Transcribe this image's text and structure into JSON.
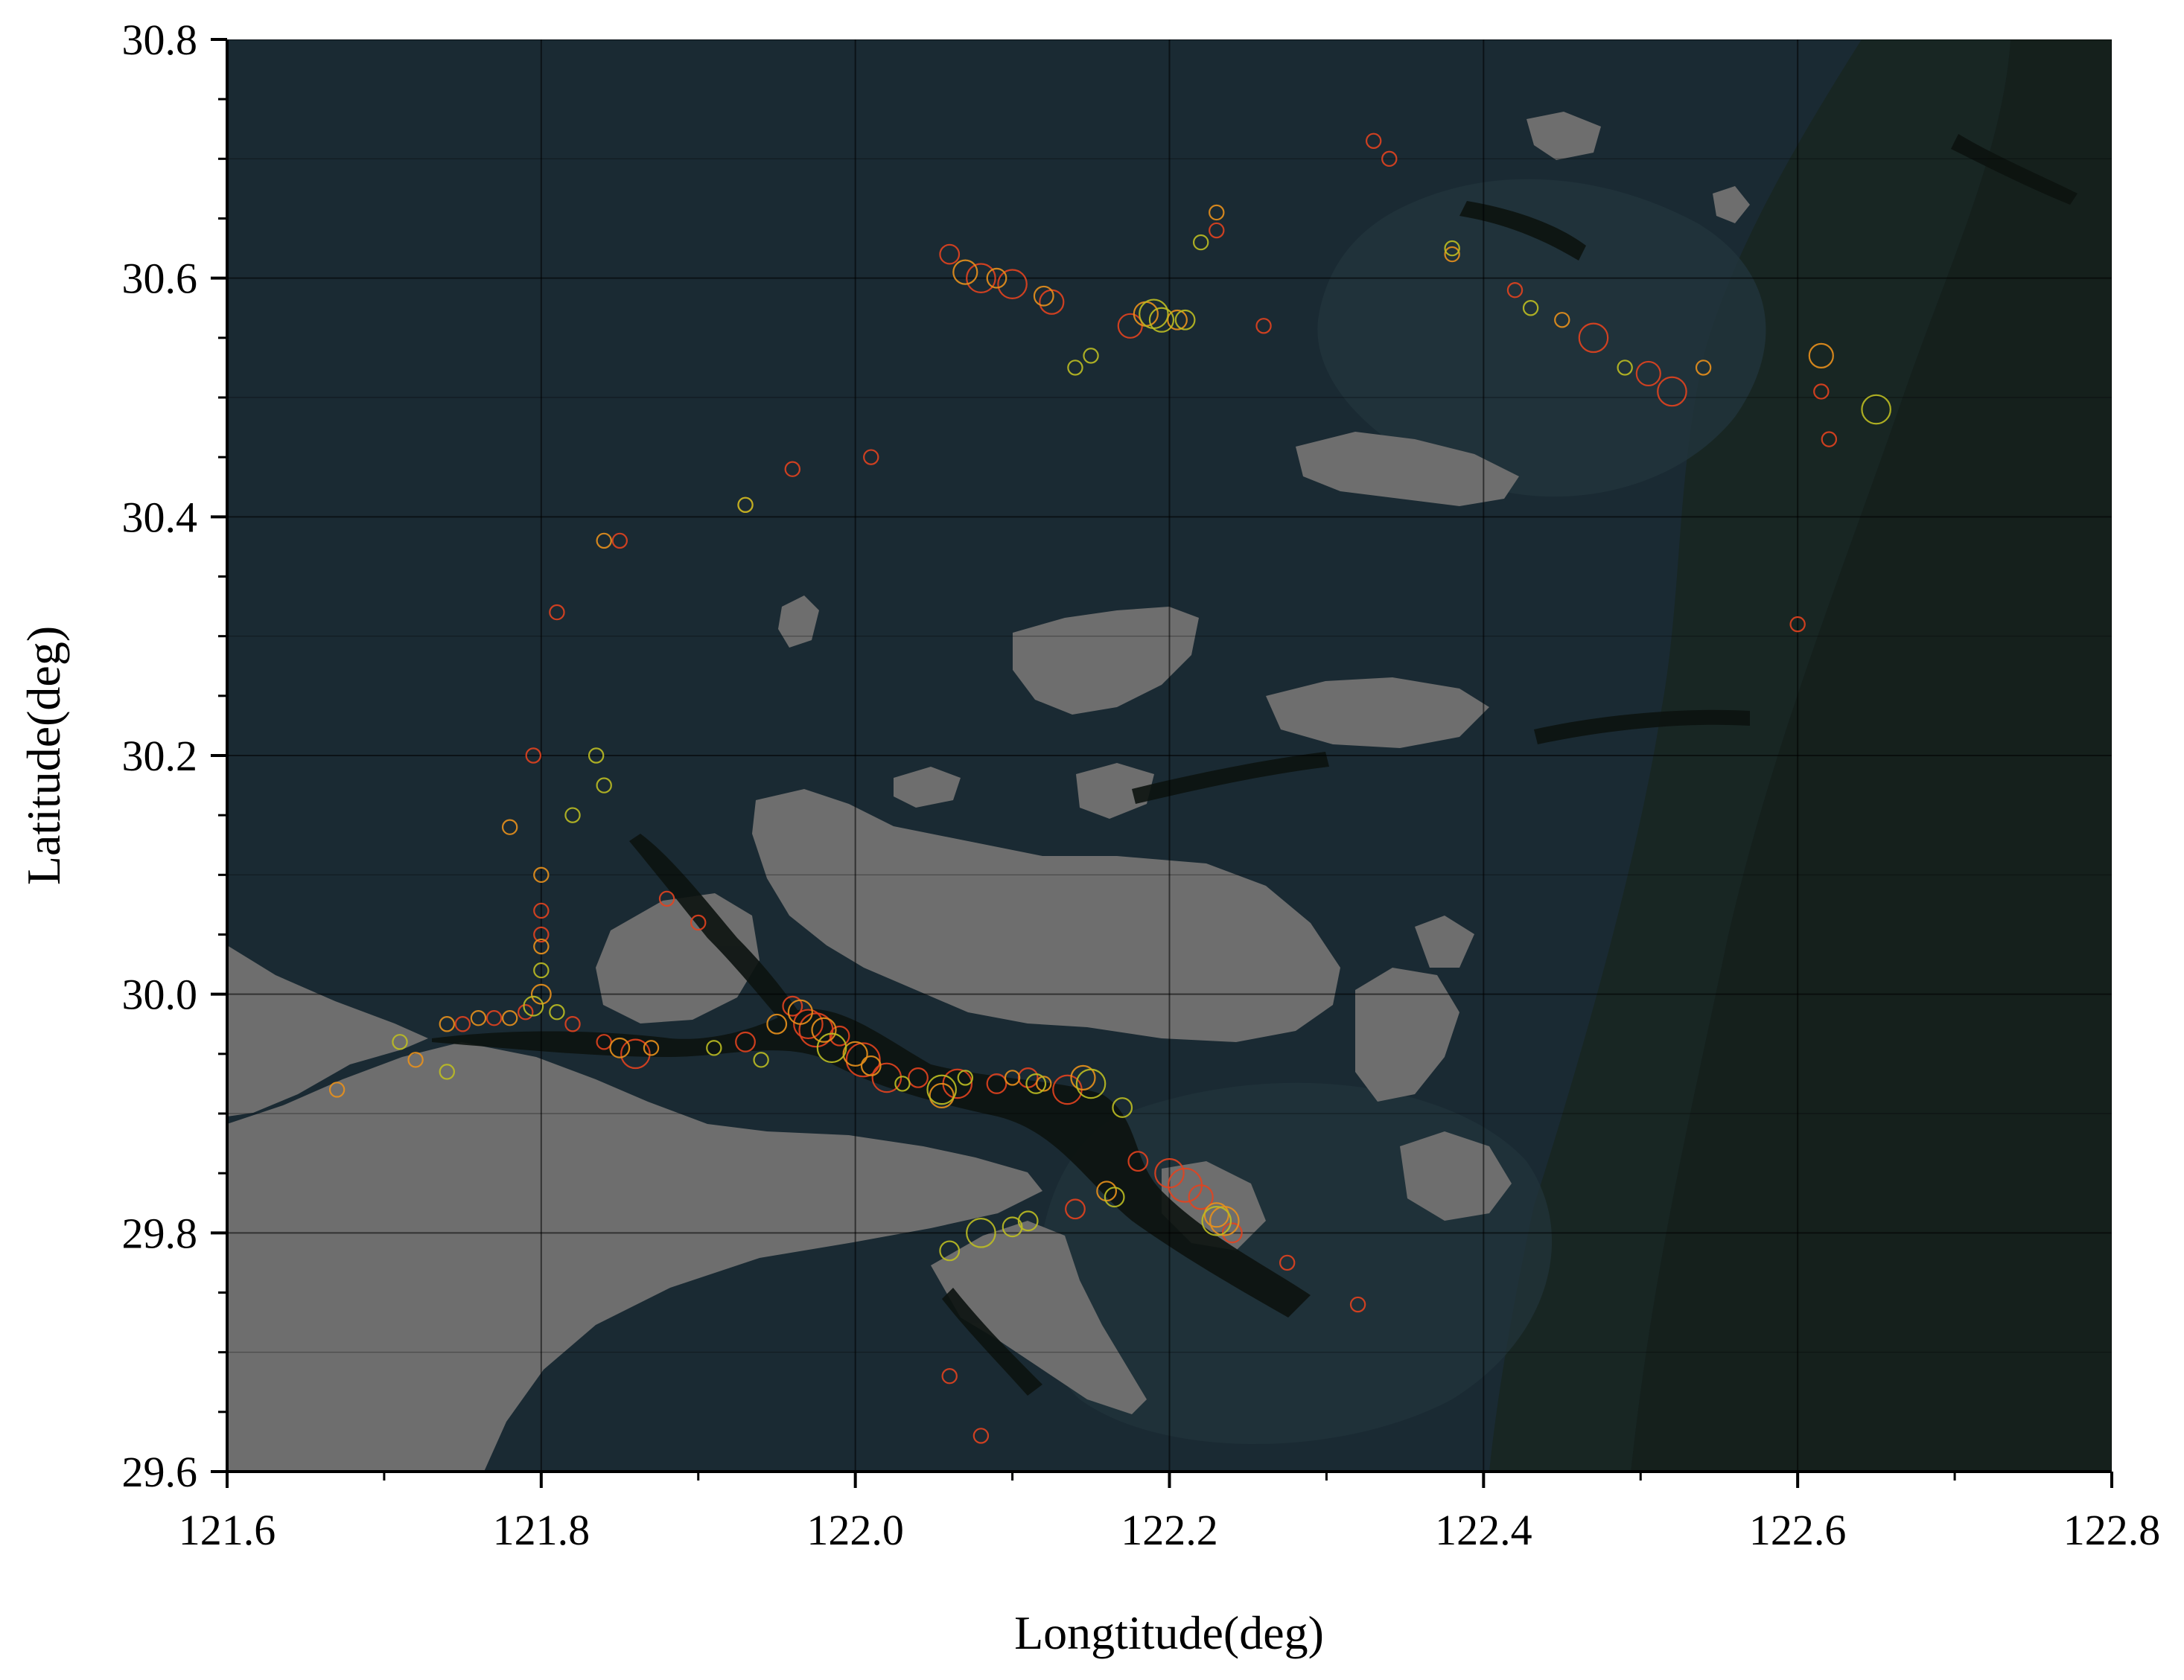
{
  "chart_data": {
    "type": "scatter",
    "title": "",
    "xlabel": "Longtitude(deg)",
    "ylabel": "Latitude(deg)",
    "xlim": [
      121.6,
      122.8
    ],
    "ylim": [
      29.6,
      30.8
    ],
    "x_ticks": [
      "121.6",
      "121.8",
      "122.0",
      "122.2",
      "122.4",
      "122.6",
      "122.8"
    ],
    "y_ticks": [
      "29.6",
      "29.8",
      "30.0",
      "30.2",
      "30.4",
      "30.6",
      "30.8"
    ],
    "grid": true,
    "legend": "none",
    "colors": {
      "sea": "#1a2a33",
      "sea_light": "#22343c",
      "deep_water": "#15201c",
      "shoal": "#0c1310",
      "land": "#6e6e6e",
      "marker_red": "#e2421f",
      "marker_orange": "#e8901c",
      "marker_yellow": "#bdbd22"
    },
    "marker_style": "hollow circles, radius proportional to magnitude",
    "series": [
      {
        "color": "marker_red",
        "points": [
          [
            121.75,
            29.975,
            3
          ],
          [
            121.77,
            29.98,
            3
          ],
          [
            121.79,
            29.985,
            3
          ],
          [
            121.8,
            30.07,
            3
          ],
          [
            121.8,
            30.05,
            3
          ],
          [
            121.86,
            29.95,
            6
          ],
          [
            121.84,
            29.96,
            3
          ],
          [
            121.82,
            29.975,
            3
          ],
          [
            121.88,
            30.08,
            3
          ],
          [
            121.9,
            30.06,
            3
          ],
          [
            121.93,
            29.96,
            4
          ],
          [
            121.96,
            29.99,
            4
          ],
          [
            121.97,
            29.975,
            6
          ],
          [
            121.975,
            29.97,
            7
          ],
          [
            121.99,
            29.965,
            4
          ],
          [
            122.005,
            29.945,
            7
          ],
          [
            122.02,
            29.93,
            6
          ],
          [
            122.04,
            29.93,
            4
          ],
          [
            122.065,
            29.925,
            6
          ],
          [
            122.09,
            29.925,
            4
          ],
          [
            122.11,
            29.93,
            4
          ],
          [
            122.135,
            29.92,
            6
          ],
          [
            122.14,
            29.82,
            4
          ],
          [
            122.18,
            29.86,
            4
          ],
          [
            122.2,
            29.85,
            6
          ],
          [
            122.21,
            29.84,
            7
          ],
          [
            122.22,
            29.83,
            5
          ],
          [
            122.24,
            29.8,
            4
          ],
          [
            122.275,
            29.775,
            3
          ],
          [
            122.06,
            30.62,
            4
          ],
          [
            122.08,
            30.6,
            6
          ],
          [
            122.1,
            30.595,
            6
          ],
          [
            122.125,
            30.58,
            5
          ],
          [
            122.175,
            30.56,
            5
          ],
          [
            122.23,
            30.64,
            3
          ],
          [
            122.26,
            30.56,
            3
          ],
          [
            121.96,
            30.44,
            3
          ],
          [
            122.01,
            30.45,
            3
          ],
          [
            121.93,
            30.41,
            3
          ],
          [
            121.85,
            30.38,
            3
          ],
          [
            121.81,
            30.32,
            3
          ],
          [
            121.795,
            30.2,
            3
          ],
          [
            122.47,
            30.55,
            6
          ],
          [
            122.505,
            30.52,
            5
          ],
          [
            122.52,
            30.505,
            6
          ],
          [
            122.42,
            30.59,
            3
          ],
          [
            122.34,
            30.7,
            3
          ],
          [
            122.33,
            30.715,
            3
          ],
          [
            122.615,
            30.505,
            3
          ],
          [
            122.62,
            30.465,
            3
          ],
          [
            122.6,
            30.31,
            3
          ],
          [
            122.06,
            29.68,
            3
          ],
          [
            122.08,
            29.63,
            3
          ],
          [
            122.32,
            29.74,
            3
          ]
        ]
      },
      {
        "color": "marker_orange",
        "points": [
          [
            121.74,
            29.975,
            3
          ],
          [
            121.76,
            29.98,
            3
          ],
          [
            121.78,
            29.98,
            3
          ],
          [
            121.8,
            30.0,
            4
          ],
          [
            121.8,
            30.04,
            3
          ],
          [
            121.85,
            29.955,
            4
          ],
          [
            121.87,
            29.955,
            3
          ],
          [
            121.95,
            29.975,
            4
          ],
          [
            121.965,
            29.985,
            5
          ],
          [
            121.98,
            29.97,
            5
          ],
          [
            122.0,
            29.95,
            5
          ],
          [
            122.01,
            29.94,
            4
          ],
          [
            122.055,
            29.915,
            5
          ],
          [
            122.1,
            29.93,
            3
          ],
          [
            122.12,
            29.925,
            3
          ],
          [
            122.145,
            29.93,
            5
          ],
          [
            122.16,
            29.835,
            4
          ],
          [
            122.23,
            29.815,
            5
          ],
          [
            122.235,
            29.81,
            6
          ],
          [
            122.07,
            30.605,
            5
          ],
          [
            122.09,
            30.6,
            4
          ],
          [
            122.12,
            30.585,
            4
          ],
          [
            122.185,
            30.57,
            5
          ],
          [
            122.205,
            30.565,
            4
          ],
          [
            122.23,
            30.655,
            3
          ],
          [
            122.38,
            30.62,
            3
          ],
          [
            122.45,
            30.565,
            3
          ],
          [
            122.615,
            30.535,
            5
          ],
          [
            122.54,
            30.525,
            3
          ],
          [
            121.84,
            30.38,
            3
          ],
          [
            121.78,
            30.14,
            3
          ],
          [
            121.8,
            30.1,
            3
          ],
          [
            121.67,
            29.92,
            3
          ],
          [
            121.72,
            29.945,
            3
          ]
        ]
      },
      {
        "color": "marker_yellow",
        "points": [
          [
            121.71,
            29.96,
            3
          ],
          [
            121.795,
            29.99,
            4
          ],
          [
            121.8,
            30.02,
            3
          ],
          [
            121.81,
            29.985,
            3
          ],
          [
            121.91,
            29.955,
            3
          ],
          [
            121.94,
            29.945,
            3
          ],
          [
            121.985,
            29.955,
            6
          ],
          [
            122.03,
            29.925,
            3
          ],
          [
            122.055,
            29.92,
            6
          ],
          [
            122.07,
            29.93,
            3
          ],
          [
            122.115,
            29.925,
            4
          ],
          [
            122.15,
            29.925,
            6
          ],
          [
            122.17,
            29.905,
            4
          ],
          [
            122.165,
            29.83,
            4
          ],
          [
            122.23,
            29.81,
            6
          ],
          [
            122.1,
            29.805,
            4
          ],
          [
            122.11,
            29.81,
            4
          ],
          [
            122.08,
            29.8,
            6
          ],
          [
            122.06,
            29.785,
            4
          ],
          [
            122.19,
            30.57,
            6
          ],
          [
            122.195,
            30.565,
            5
          ],
          [
            122.21,
            30.565,
            4
          ],
          [
            122.15,
            30.535,
            3
          ],
          [
            122.14,
            30.525,
            3
          ],
          [
            122.22,
            30.63,
            3
          ],
          [
            122.38,
            30.625,
            3
          ],
          [
            122.43,
            30.575,
            3
          ],
          [
            122.49,
            30.525,
            3
          ],
          [
            122.65,
            30.49,
            6
          ],
          [
            121.93,
            30.41,
            3
          ],
          [
            121.835,
            30.2,
            3
          ],
          [
            121.84,
            30.175,
            3
          ],
          [
            121.82,
            30.15,
            3
          ],
          [
            121.74,
            29.935,
            3
          ]
        ]
      }
    ]
  }
}
